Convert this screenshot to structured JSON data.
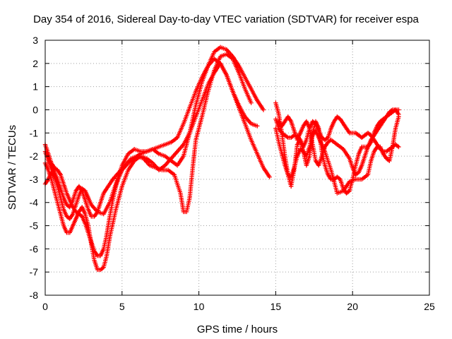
{
  "chart_data": {
    "type": "scatter",
    "title": "Day 354 of 2016, Sidereal Day-to-day VTEC variation (SDTVAR) for receiver espa",
    "xlabel": "GPS time / hours",
    "ylabel": "SDTVAR / TECUs",
    "xlim": [
      0,
      25
    ],
    "ylim": [
      -8,
      3
    ],
    "xticks": [
      "0",
      "5",
      "10",
      "15",
      "20",
      "25"
    ],
    "yticks": [
      "-8",
      "-7",
      "-6",
      "-5",
      "-4",
      "-3",
      "-2",
      "-1",
      "0",
      "1",
      "2",
      "3"
    ],
    "grid": true,
    "marker": "plus",
    "color": "#ff0000",
    "series": [
      {
        "x": [
          0.0,
          0.2,
          0.4,
          0.6,
          0.8,
          1.0,
          1.2,
          1.4,
          1.6,
          1.8,
          2.0,
          2.2,
          2.4,
          2.6,
          2.8,
          3.0,
          3.2,
          3.4,
          3.6,
          3.8,
          4.0,
          4.2,
          4.4,
          4.6,
          4.8,
          5.0,
          5.4,
          5.8,
          6.2,
          6.6,
          7.0,
          7.4,
          7.8,
          8.2,
          8.6,
          9.0,
          9.4,
          9.8,
          10.2,
          10.6,
          11.0,
          11.4,
          11.8,
          12.2,
          12.6,
          13.0,
          13.4,
          13.8,
          14.2,
          14.6
        ],
        "y": [
          -1.5,
          -1.9,
          -2.3,
          -2.5,
          -2.6,
          -2.8,
          -3.2,
          -3.6,
          -3.9,
          -4.2,
          -4.4,
          -4.5,
          -4.6,
          -4.9,
          -5.3,
          -5.7,
          -6.1,
          -6.3,
          -6.3,
          -6.0,
          -5.4,
          -4.6,
          -3.9,
          -3.3,
          -2.9,
          -2.6,
          -2.3,
          -2.1,
          -1.9,
          -1.8,
          -1.7,
          -1.9,
          -2.0,
          -2.2,
          -2.4,
          -2.0,
          -1.0,
          0.2,
          1.2,
          1.9,
          2.2,
          2.0,
          1.5,
          0.8,
          0.1,
          -0.6,
          -1.3,
          -1.9,
          -2.5,
          -2.9
        ]
      },
      {
        "x": [
          0.0,
          0.2,
          0.4,
          0.6,
          0.8,
          1.0,
          1.2,
          1.4,
          1.6,
          1.8,
          2.0,
          2.2,
          2.4,
          2.6,
          2.8,
          3.0,
          3.2,
          3.4,
          3.6,
          3.8,
          4.0,
          4.4,
          4.8,
          5.2,
          5.6,
          6.0,
          6.4,
          6.8,
          7.2,
          7.6,
          8.0,
          8.4,
          8.8,
          9.0,
          9.2,
          9.4,
          9.6,
          9.8,
          10.2,
          10.6,
          11.0,
          11.4,
          11.8,
          12.2,
          12.6,
          13.0,
          13.4
        ],
        "y": [
          -1.8,
          -2.2,
          -2.5,
          -2.7,
          -3.0,
          -3.4,
          -3.8,
          -4.1,
          -4.2,
          -3.9,
          -3.5,
          -3.3,
          -3.5,
          -3.9,
          -4.3,
          -4.6,
          -4.6,
          -4.4,
          -4.0,
          -3.6,
          -3.4,
          -3.0,
          -2.7,
          -2.4,
          -2.1,
          -2.0,
          -2.1,
          -2.4,
          -2.5,
          -2.6,
          -2.6,
          -2.8,
          -3.6,
          -4.4,
          -4.4,
          -3.8,
          -2.5,
          -1.3,
          -0.3,
          0.8,
          1.7,
          2.3,
          2.4,
          2.2,
          1.6,
          0.9,
          0.3
        ]
      },
      {
        "x": [
          0.0,
          0.2,
          0.4,
          0.6,
          0.8,
          1.0,
          1.2,
          1.4,
          1.6,
          1.8,
          2.0,
          2.2,
          2.4,
          2.6,
          2.8,
          3.0,
          3.4,
          3.8,
          4.2,
          4.6,
          5.0,
          5.4,
          5.8,
          6.2,
          6.6,
          7.0,
          7.4,
          7.8,
          8.2,
          8.6,
          9.0,
          9.4,
          9.8,
          10.2,
          10.6,
          11.0,
          11.4,
          11.8,
          12.2,
          12.6,
          13.0,
          13.4,
          13.8,
          14.2
        ],
        "y": [
          -3.2,
          -3.0,
          -2.7,
          -2.9,
          -3.3,
          -3.8,
          -4.3,
          -4.6,
          -4.7,
          -4.5,
          -4.1,
          -3.7,
          -3.4,
          -3.5,
          -3.8,
          -4.1,
          -4.4,
          -4.5,
          -4.0,
          -3.2,
          -2.4,
          -1.9,
          -1.7,
          -1.8,
          -1.8,
          -1.7,
          -1.6,
          -1.5,
          -1.4,
          -1.2,
          -0.6,
          0.1,
          0.8,
          1.4,
          1.9,
          2.5,
          2.7,
          2.6,
          2.3,
          1.9,
          1.4,
          0.9,
          0.4,
          0.0
        ]
      },
      {
        "x": [
          0.0,
          0.2,
          0.4,
          0.6,
          0.8,
          1.0,
          1.2,
          1.4,
          1.6,
          1.8,
          2.0,
          2.2,
          2.4,
          2.6,
          2.8,
          3.0,
          3.2,
          3.4,
          3.6,
          3.8,
          4.0,
          4.2,
          4.6,
          5.0,
          5.4,
          5.8,
          6.2,
          6.6,
          7.0,
          7.4,
          7.8,
          8.2,
          8.6,
          9.0,
          9.4,
          9.8,
          10.2,
          10.6,
          11.0,
          11.4,
          11.8,
          12.2,
          12.6,
          13.0,
          13.4,
          13.8
        ],
        "y": [
          -2.3,
          -2.6,
          -3.0,
          -3.5,
          -4.0,
          -4.5,
          -5.0,
          -5.3,
          -5.3,
          -5.0,
          -4.7,
          -4.4,
          -4.2,
          -4.5,
          -5.0,
          -5.8,
          -6.5,
          -6.9,
          -6.9,
          -6.8,
          -6.3,
          -5.5,
          -4.3,
          -3.3,
          -2.6,
          -2.2,
          -2.0,
          -2.1,
          -2.3,
          -2.6,
          -2.4,
          -2.1,
          -1.8,
          -1.5,
          -1.0,
          -0.3,
          0.4,
          1.1,
          1.6,
          2.0,
          1.5,
          0.8,
          0.2,
          -0.3,
          -0.6,
          -0.7
        ]
      },
      {
        "x": [
          15.0,
          15.2,
          15.4,
          15.6,
          15.8,
          16.0,
          16.2,
          16.4,
          16.6,
          16.8,
          17.0,
          17.2,
          17.4,
          17.6,
          17.8,
          18.0,
          18.2,
          18.4,
          18.6,
          18.8,
          19.0,
          19.2,
          19.4,
          19.6,
          19.8,
          20.0,
          20.2,
          20.4,
          20.6,
          20.8,
          21.0,
          21.2,
          21.4,
          21.6,
          21.8,
          22.0,
          22.2,
          22.4,
          22.6,
          22.8,
          23.0
        ],
        "y": [
          -0.4,
          -0.8,
          -1.0,
          -1.1,
          -1.2,
          -1.2,
          -1.1,
          -1.1,
          -1.3,
          -1.6,
          -1.3,
          -0.8,
          -0.5,
          -0.6,
          -0.9,
          -1.2,
          -1.3,
          -1.2,
          -0.8,
          -0.5,
          -0.3,
          -0.4,
          -0.6,
          -0.8,
          -1.0,
          -1.0,
          -1.0,
          -1.1,
          -1.2,
          -1.1,
          -1.0,
          -1.1,
          -1.3,
          -1.5,
          -1.7,
          -1.8,
          -1.8,
          -1.7,
          -1.6,
          -1.5,
          -1.6
        ]
      },
      {
        "x": [
          15.0,
          15.2,
          15.4,
          15.6,
          15.8,
          16.0,
          16.2,
          16.4,
          16.6,
          16.8,
          17.0,
          17.2,
          17.4,
          17.6,
          17.8,
          18.0,
          18.2,
          18.6,
          19.0,
          19.4,
          19.8,
          20.2,
          20.6,
          21.0,
          21.2,
          21.4,
          21.6,
          21.8,
          22.0,
          22.2,
          22.4,
          22.6,
          22.8,
          23.0
        ],
        "y": [
          -0.8,
          -1.4,
          -1.9,
          -2.4,
          -2.8,
          -2.9,
          -2.5,
          -2.0,
          -1.7,
          -1.8,
          -2.0,
          -1.6,
          -1.1,
          -0.9,
          -1.2,
          -1.5,
          -1.8,
          -2.6,
          -3.6,
          -3.5,
          -3.1,
          -3.0,
          -3.0,
          -2.8,
          -2.2,
          -1.8,
          -1.6,
          -1.6,
          -1.9,
          -2.1,
          -2.2,
          -1.6,
          -0.8,
          -0.3
        ]
      },
      {
        "x": [
          15.0,
          15.2,
          15.4,
          15.6,
          15.8,
          16.0,
          16.2,
          16.4,
          16.6,
          16.8,
          17.0,
          17.2,
          17.4,
          17.6,
          17.8,
          18.0,
          18.2,
          18.4,
          18.6,
          18.8,
          19.0,
          19.2,
          19.4,
          19.6,
          19.8,
          20.0,
          20.2,
          20.4,
          20.6,
          20.8,
          21.0,
          21.2,
          21.4,
          21.6,
          21.8,
          22.0,
          22.2,
          22.4,
          22.6,
          22.8,
          23.0
        ],
        "y": [
          0.3,
          -0.2,
          -1.0,
          -2.0,
          -2.8,
          -3.3,
          -2.6,
          -1.5,
          -1.3,
          -1.8,
          -2.4,
          -2.0,
          -1.0,
          -0.5,
          -0.8,
          -1.8,
          -2.4,
          -2.8,
          -3.0,
          -3.0,
          -2.9,
          -3.0,
          -3.4,
          -3.6,
          -3.5,
          -3.0,
          -2.4,
          -1.9,
          -1.6,
          -1.6,
          -1.6,
          -1.4,
          -1.0,
          -0.7,
          -0.5,
          -0.4,
          -0.3,
          -0.2,
          -0.1,
          0.0,
          0.0
        ]
      },
      {
        "x": [
          15.2,
          15.4,
          15.6,
          15.8,
          16.0,
          16.2,
          16.4,
          16.6,
          16.8,
          17.0,
          17.2,
          17.4,
          17.6,
          17.8,
          18.0,
          18.2,
          18.4,
          18.6,
          19.0,
          19.4,
          19.8,
          20.0,
          20.2,
          20.4,
          20.6,
          20.8,
          21.0,
          21.2,
          21.4,
          21.6,
          21.8,
          22.0,
          22.2,
          22.4,
          22.6,
          22.8,
          23.0
        ],
        "y": [
          -0.5,
          -0.7,
          -0.5,
          -0.3,
          -0.5,
          -0.9,
          -1.3,
          -1.0,
          -0.7,
          -0.5,
          -0.8,
          -1.5,
          -2.2,
          -2.4,
          -2.0,
          -1.6,
          -1.4,
          -1.3,
          -1.5,
          -1.7,
          -2.1,
          -2.5,
          -2.8,
          -2.7,
          -2.4,
          -2.0,
          -1.6,
          -1.3,
          -1.1,
          -0.9,
          -0.7,
          -0.5,
          -0.3,
          -0.1,
          0.0,
          0.0,
          -0.2
        ]
      }
    ]
  }
}
